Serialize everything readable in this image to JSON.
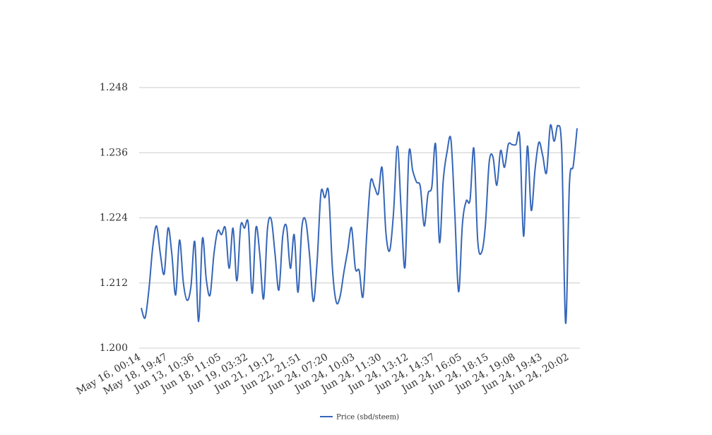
{
  "chart_data": {
    "type": "line",
    "series": [
      {
        "name": "Price (sbd/steem)",
        "color": "#3566b8",
        "values": [
          1.2074,
          1.2056,
          1.2108,
          1.2186,
          1.2225,
          1.2173,
          1.2137,
          1.2221,
          1.2173,
          1.2098,
          1.2199,
          1.2121,
          1.2088,
          1.2114,
          1.2196,
          1.2049,
          1.2202,
          1.2127,
          1.2098,
          1.2173,
          1.2216,
          1.2209,
          1.2221,
          1.2147,
          1.2221,
          1.2124,
          1.2225,
          1.2221,
          1.2229,
          1.2101,
          1.2222,
          1.2173,
          1.2091,
          1.2219,
          1.2237,
          1.2173,
          1.2107,
          1.2206,
          1.2224,
          1.2147,
          1.2209,
          1.2103,
          1.2222,
          1.2235,
          1.2173,
          1.2086,
          1.216,
          1.2286,
          1.2277,
          1.2287,
          1.2147,
          1.2085,
          1.2095,
          1.214,
          1.218,
          1.2222,
          1.2147,
          1.2143,
          1.2095,
          1.2212,
          1.2307,
          1.2297,
          1.2284,
          1.2332,
          1.2212,
          1.218,
          1.2251,
          1.2372,
          1.2251,
          1.215,
          1.2358,
          1.2327,
          1.2306,
          1.2297,
          1.2225,
          1.2284,
          1.2297,
          1.2375,
          1.2195,
          1.231,
          1.2362,
          1.2384,
          1.2251,
          1.2104,
          1.2228,
          1.2271,
          1.2273,
          1.2368,
          1.2199,
          1.2176,
          1.2225,
          1.2342,
          1.2352,
          1.23,
          1.2364,
          1.2333,
          1.2375,
          1.2375,
          1.2375,
          1.2388,
          1.2206,
          1.2372,
          1.2254,
          1.2329,
          1.2379,
          1.2355,
          1.2323,
          1.241,
          1.2381,
          1.241,
          1.2362,
          1.2046,
          1.2303,
          1.2336,
          1.2405
        ]
      }
    ],
    "categories": [
      "May 16, 00:14",
      null,
      null,
      null,
      null,
      null,
      null,
      "May 18, 19:47",
      null,
      null,
      null,
      null,
      null,
      null,
      "Jun 13, 10:36",
      null,
      null,
      null,
      null,
      null,
      null,
      "Jun 18, 11:05",
      null,
      null,
      null,
      null,
      null,
      null,
      "Jun 19, 03:32",
      null,
      null,
      null,
      null,
      null,
      null,
      "Jun 21, 19:12",
      null,
      null,
      null,
      null,
      null,
      null,
      "Jun 22, 21:51",
      null,
      null,
      null,
      null,
      null,
      null,
      "Jun 24, 07:20",
      null,
      null,
      null,
      null,
      null,
      null,
      "Jun 24, 10:03",
      null,
      null,
      null,
      null,
      null,
      null,
      "Jun 24, 11:30",
      null,
      null,
      null,
      null,
      null,
      null,
      "Jun 24, 13:12",
      null,
      null,
      null,
      null,
      null,
      null,
      "Jun 24, 14:37",
      null,
      null,
      null,
      null,
      null,
      null,
      "Jun 24, 16:05",
      null,
      null,
      null,
      null,
      null,
      null,
      "Jun 24, 18:15",
      null,
      null,
      null,
      null,
      null,
      null,
      "Jun 24, 19:08",
      null,
      null,
      null,
      null,
      null,
      null,
      "Jun 24, 19:43",
      null,
      null,
      null,
      null,
      null,
      null,
      "Jun 24, 20:02",
      null,
      null
    ],
    "ylim": [
      1.2,
      1.248
    ],
    "yticks": [
      {
        "value": 1.2,
        "label": "1.200"
      },
      {
        "value": 1.212,
        "label": "1.212"
      },
      {
        "value": 1.224,
        "label": "1.224"
      },
      {
        "value": 1.236,
        "label": "1.236"
      },
      {
        "value": 1.248,
        "label": "1.248"
      }
    ],
    "grid": true,
    "legend": "bottom"
  }
}
